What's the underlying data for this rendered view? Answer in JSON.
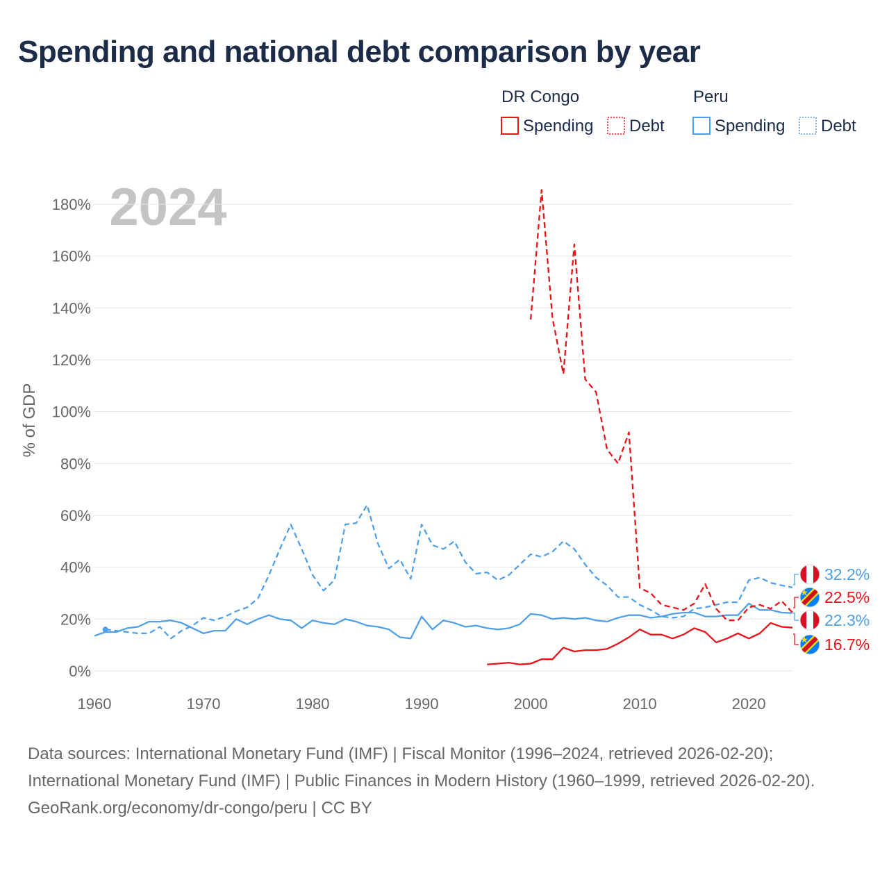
{
  "title": "Spending and national debt comparison by year",
  "year_watermark": "2024",
  "legend": {
    "groups": [
      {
        "country": "DR Congo",
        "color": "#e8141a",
        "items": [
          {
            "label": "Spending",
            "style": "solid"
          },
          {
            "label": "Debt",
            "style": "dotted"
          }
        ]
      },
      {
        "country": "Peru",
        "color": "#4fa0e8",
        "items": [
          {
            "label": "Spending",
            "style": "solid"
          },
          {
            "label": "Debt",
            "style": "dotted"
          }
        ]
      }
    ]
  },
  "colors": {
    "drc": "#e8141a",
    "peru": "#4fa0e8",
    "grid": "#e6e6e6",
    "axis_text": "#666666",
    "watermark": "#c4c4c4"
  },
  "chart_data": {
    "type": "line",
    "xlabel": "",
    "ylabel": "% of GDP",
    "xlim": [
      1960,
      2024
    ],
    "ylim": [
      0,
      180
    ],
    "x_ticks": [
      1960,
      1970,
      1980,
      1990,
      2000,
      2010,
      2020
    ],
    "y_ticks": [
      0,
      20,
      40,
      60,
      80,
      100,
      120,
      140,
      160,
      180
    ],
    "y_tick_labels": [
      "0%",
      "20%",
      "40%",
      "60%",
      "80%",
      "100%",
      "120%",
      "140%",
      "160%",
      "180%"
    ],
    "series": [
      {
        "name": "Peru Debt",
        "country": "Peru",
        "measure": "Debt",
        "color": "#4fa0e8",
        "dash": true,
        "x": [
          1961,
          1962,
          1963,
          1964,
          1965,
          1966,
          1967,
          1968,
          1969,
          1970,
          1971,
          1972,
          1973,
          1974,
          1975,
          1976,
          1977,
          1978,
          1979,
          1980,
          1981,
          1982,
          1983,
          1984,
          1985,
          1986,
          1987,
          1988,
          1989,
          1990,
          1991,
          1992,
          1993,
          1994,
          1995,
          1996,
          1997,
          1998,
          1999,
          2000,
          2001,
          2002,
          2003,
          2004,
          2005,
          2006,
          2007,
          2008,
          2009,
          2010,
          2011,
          2012,
          2013,
          2014,
          2015,
          2016,
          2017,
          2018,
          2019,
          2020,
          2021,
          2022,
          2023,
          2024
        ],
        "values": [
          16,
          15.5,
          15,
          14.5,
          14.5,
          17,
          12.5,
          15.5,
          17.5,
          20.5,
          19.5,
          21,
          23,
          24.5,
          28,
          37,
          47,
          56.5,
          47,
          37,
          31,
          35,
          56.5,
          57,
          64,
          49,
          39.5,
          43,
          35.5,
          56.5,
          48.5,
          47,
          50,
          42,
          37.5,
          38,
          35,
          37,
          41,
          45,
          44,
          46,
          50,
          47,
          41,
          36,
          33,
          28.5,
          28.5,
          25.5,
          23.5,
          21,
          20.5,
          21,
          24,
          24.5,
          25.5,
          26.5,
          26.5,
          35,
          36,
          34,
          33,
          32.2
        ]
      },
      {
        "name": "Peru Spending",
        "country": "Peru",
        "measure": "Spending",
        "color": "#4fa0e8",
        "dash": false,
        "x": [
          1960,
          1961,
          1962,
          1963,
          1964,
          1965,
          1966,
          1967,
          1968,
          1969,
          1970,
          1971,
          1972,
          1973,
          1974,
          1975,
          1976,
          1977,
          1978,
          1979,
          1980,
          1981,
          1982,
          1983,
          1984,
          1985,
          1986,
          1987,
          1988,
          1989,
          1990,
          1991,
          1992,
          1993,
          1994,
          1995,
          1996,
          1997,
          1998,
          1999,
          2000,
          2001,
          2002,
          2003,
          2004,
          2005,
          2006,
          2007,
          2008,
          2009,
          2010,
          2011,
          2012,
          2013,
          2014,
          2015,
          2016,
          2017,
          2018,
          2019,
          2020,
          2021,
          2022,
          2023,
          2024
        ],
        "values": [
          13.5,
          15,
          15,
          16.5,
          17,
          19,
          19,
          19.5,
          18.5,
          16.5,
          14.5,
          15.5,
          15.5,
          20,
          18,
          20,
          21.5,
          20,
          19.5,
          16.5,
          19.5,
          18.5,
          18,
          20,
          19,
          17.5,
          17,
          16,
          13,
          12.5,
          21,
          16,
          19.5,
          18.5,
          17,
          17.5,
          16.5,
          16,
          16.5,
          18,
          22,
          21.5,
          20,
          20.5,
          20,
          20.5,
          19.5,
          19,
          20.5,
          21.5,
          21.5,
          20.5,
          21,
          22,
          22.5,
          22.5,
          21,
          21,
          21.5,
          21.5,
          26,
          23.5,
          23.5,
          22.5,
          22.3
        ]
      },
      {
        "name": "DR Congo Debt",
        "country": "DR Congo",
        "measure": "Debt",
        "color": "#e8141a",
        "dash": true,
        "x": [
          2000,
          2001,
          2002,
          2003,
          2004,
          2005,
          2006,
          2007,
          2008,
          2009,
          2010,
          2011,
          2012,
          2013,
          2014,
          2015,
          2016,
          2017,
          2018,
          2019,
          2020,
          2021,
          2022,
          2023,
          2024
        ],
        "values": [
          135.5,
          185.5,
          136,
          114.5,
          164.5,
          112.5,
          107.5,
          85.5,
          80,
          92,
          32,
          30,
          25.5,
          24.5,
          23.5,
          26,
          33.5,
          24,
          19.5,
          19.5,
          24.5,
          25.5,
          24,
          27,
          22.5
        ]
      },
      {
        "name": "DR Congo Spending",
        "country": "DR Congo",
        "measure": "Spending",
        "color": "#e8141a",
        "dash": false,
        "x": [
          1996,
          1997,
          1998,
          1999,
          2000,
          2001,
          2002,
          2003,
          2004,
          2005,
          2006,
          2007,
          2008,
          2009,
          2010,
          2011,
          2012,
          2013,
          2014,
          2015,
          2016,
          2017,
          2018,
          2019,
          2020,
          2021,
          2022,
          2023,
          2024
        ],
        "values": [
          2.5,
          2.8,
          3.2,
          2.5,
          2.8,
          4.5,
          4.5,
          9,
          7.5,
          8,
          8,
          8.5,
          10.5,
          13,
          16,
          14,
          14,
          12.5,
          14,
          16.5,
          15,
          11,
          12.5,
          14.5,
          12.5,
          14.5,
          18.5,
          17,
          16.7
        ]
      }
    ],
    "end_labels": [
      {
        "series": "Peru Debt",
        "flag": "peru",
        "text": "32.2%"
      },
      {
        "series": "DR Congo Debt",
        "flag": "drc",
        "text": "22.5%"
      },
      {
        "series": "Peru Spending",
        "flag": "peru",
        "text": "22.3%"
      },
      {
        "series": "DR Congo Spending",
        "flag": "drc",
        "text": "16.7%"
      }
    ]
  },
  "footer": {
    "sources": "Data sources: International Monetary Fund (IMF) | Fiscal Monitor (1996–2024, retrieved 2026-02-20); International Monetary Fund (IMF) | Public Finances in Modern History (1960–1999, retrieved 2026-02-20).",
    "credit": "GeoRank.org/economy/dr-congo/peru | CC BY"
  }
}
